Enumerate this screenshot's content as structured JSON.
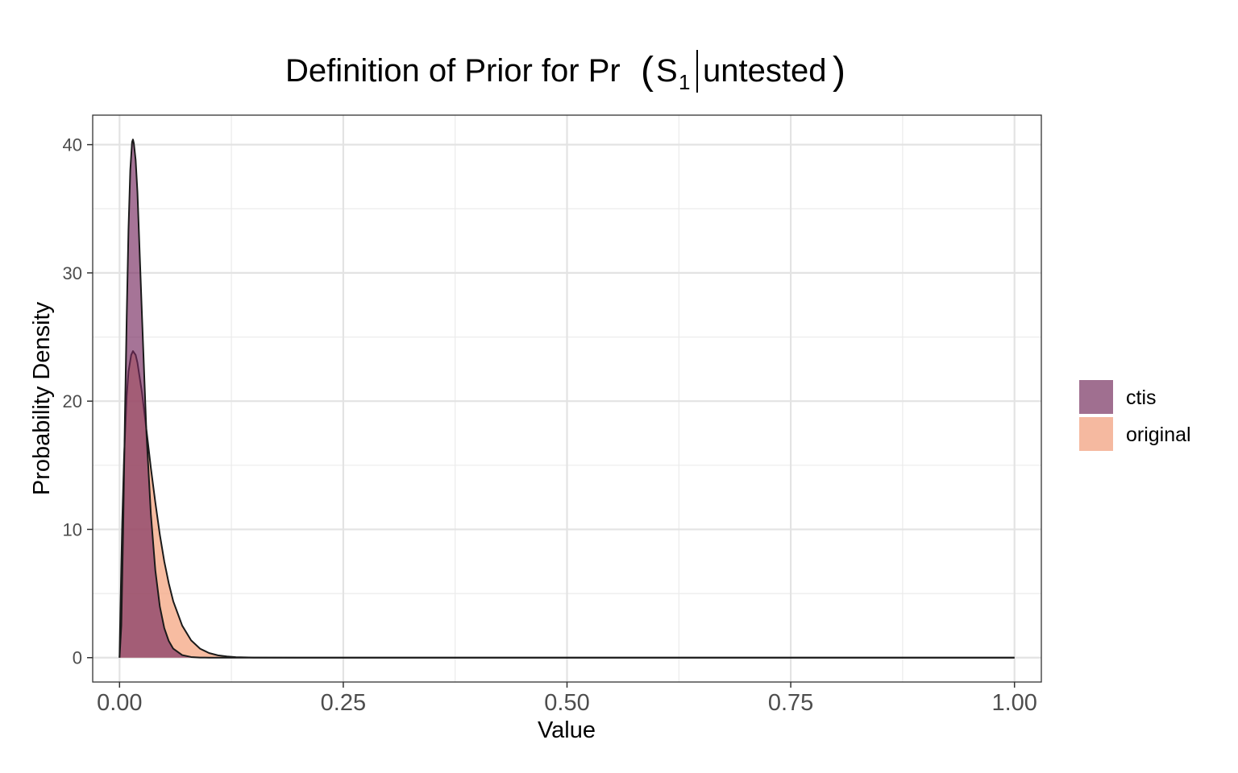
{
  "chart_data": {
    "type": "area",
    "title": {
      "main": "Definition of Prior for Pr",
      "subject": "S",
      "subscript": "1",
      "condition": "untested"
    },
    "xlabel": "Value",
    "ylabel": "Probability Density",
    "xlim": [
      -0.03,
      1.03
    ],
    "ylim": [
      -1.9,
      42.3
    ],
    "x_ticks": [
      0.0,
      0.25,
      0.5,
      0.75,
      1.0
    ],
    "x_tick_labels": [
      "0.00",
      "0.25",
      "0.50",
      "0.75",
      "1.00"
    ],
    "x_minor_ticks": [
      0.125,
      0.375,
      0.625,
      0.875
    ],
    "y_ticks": [
      0,
      10,
      20,
      30,
      40
    ],
    "y_tick_labels": [
      "0",
      "10",
      "20",
      "30",
      "40"
    ],
    "y_minor_ticks": [
      5,
      15,
      25,
      35
    ],
    "grid": true,
    "legend_position": "right",
    "series": [
      {
        "name": "original",
        "color": "#f4a582",
        "opacity": 0.75,
        "points": [
          [
            0,
            0
          ],
          [
            0.001,
            3.8
          ],
          [
            0.003,
            10.5
          ],
          [
            0.005,
            15.5
          ],
          [
            0.008,
            20.4
          ],
          [
            0.01,
            22.3
          ],
          [
            0.013,
            23.6
          ],
          [
            0.015,
            23.9
          ],
          [
            0.018,
            23.6
          ],
          [
            0.02,
            23.0
          ],
          [
            0.025,
            20.7
          ],
          [
            0.03,
            17.8
          ],
          [
            0.035,
            14.8
          ],
          [
            0.04,
            12.1
          ],
          [
            0.045,
            9.6
          ],
          [
            0.05,
            7.5
          ],
          [
            0.055,
            5.8
          ],
          [
            0.06,
            4.4
          ],
          [
            0.07,
            2.5
          ],
          [
            0.08,
            1.35
          ],
          [
            0.09,
            0.7
          ],
          [
            0.1,
            0.36
          ],
          [
            0.11,
            0.18
          ],
          [
            0.12,
            0.09
          ],
          [
            0.13,
            0.04
          ],
          [
            0.15,
            0.01
          ],
          [
            0.2,
            0
          ],
          [
            0.5,
            0
          ],
          [
            1.0,
            0
          ]
        ]
      },
      {
        "name": "ctis",
        "color": "#762a5f",
        "opacity": 0.65,
        "points": [
          [
            0,
            0
          ],
          [
            0.002,
            2.5
          ],
          [
            0.004,
            9.8
          ],
          [
            0.006,
            18.6
          ],
          [
            0.008,
            26.5
          ],
          [
            0.01,
            33.4
          ],
          [
            0.012,
            38.0
          ],
          [
            0.014,
            40.2
          ],
          [
            0.015,
            40.4
          ],
          [
            0.016,
            40.1
          ],
          [
            0.018,
            38.8
          ],
          [
            0.02,
            36.3
          ],
          [
            0.025,
            26.8
          ],
          [
            0.03,
            17.6
          ],
          [
            0.035,
            11.2
          ],
          [
            0.04,
            6.8
          ],
          [
            0.045,
            4.0
          ],
          [
            0.05,
            2.3
          ],
          [
            0.055,
            1.3
          ],
          [
            0.06,
            0.7
          ],
          [
            0.07,
            0.2
          ],
          [
            0.08,
            0.05
          ],
          [
            0.09,
            0.01
          ],
          [
            0.1,
            0
          ],
          [
            0.5,
            0
          ],
          [
            1.0,
            0
          ]
        ]
      }
    ],
    "legend": [
      {
        "name": "ctis",
        "color": "#a06f90"
      },
      {
        "name": "original",
        "color": "#f5b9a0"
      }
    ]
  }
}
